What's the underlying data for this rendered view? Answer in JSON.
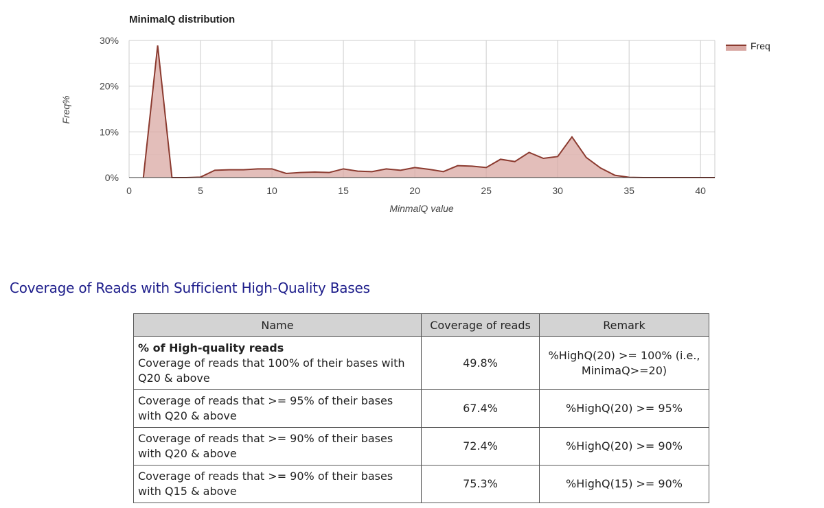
{
  "chart_data": {
    "type": "area",
    "title": "MinimalQ distribution",
    "xlabel": "MinmalQ value",
    "ylabel": "Freq%",
    "xlim": [
      0,
      41
    ],
    "ylim": [
      0,
      30
    ],
    "x_ticks": [
      0,
      5,
      10,
      15,
      20,
      25,
      30,
      35,
      40
    ],
    "y_ticks": [
      "0%",
      "10%",
      "20%",
      "30%"
    ],
    "y_tick_values": [
      0,
      10,
      20,
      30
    ],
    "grid": true,
    "legend_position": "top-right",
    "series_color": "#8b3a2f",
    "series_fill": "#d9a8a3",
    "series": [
      {
        "name": "Freq",
        "x": [
          1,
          2,
          3,
          4,
          5,
          6,
          7,
          8,
          9,
          10,
          11,
          12,
          13,
          14,
          15,
          16,
          17,
          18,
          19,
          20,
          21,
          22,
          23,
          24,
          25,
          26,
          27,
          28,
          29,
          30,
          31,
          32,
          33,
          34,
          35,
          36,
          37,
          38,
          39,
          40,
          41
        ],
        "values": [
          0,
          28.9,
          0,
          0,
          0.1,
          1.6,
          1.7,
          1.7,
          1.9,
          1.9,
          0.9,
          1.1,
          1.2,
          1.1,
          1.9,
          1.4,
          1.3,
          1.9,
          1.6,
          2.2,
          1.8,
          1.3,
          2.6,
          2.5,
          2.2,
          4.0,
          3.5,
          5.5,
          4.2,
          4.6,
          8.9,
          4.4,
          2.1,
          0.5,
          0.05,
          0,
          0,
          0,
          0,
          0,
          0
        ]
      }
    ]
  },
  "section": {
    "heading": "Coverage of Reads with Sufficient High-Quality Bases"
  },
  "table": {
    "headers": [
      "Name",
      "Coverage of reads",
      "Remark"
    ],
    "rows": [
      {
        "title": "% of High-quality reads",
        "desc": "Coverage of reads that 100% of their bases with Q20 & above",
        "coverage": "49.8%",
        "remark": "%HighQ(20) >= 100% (i.e., MinimaQ>=20)"
      },
      {
        "title": "",
        "desc": "Coverage of reads that >= 95% of their bases with Q20 & above",
        "coverage": "67.4%",
        "remark": "%HighQ(20) >= 95%"
      },
      {
        "title": "",
        "desc": "Coverage of reads that >= 90% of their bases with Q20 & above",
        "coverage": "72.4%",
        "remark": "%HighQ(20) >= 90%"
      },
      {
        "title": "",
        "desc": "Coverage of reads that >= 90% of their bases with Q15 & above",
        "coverage": "75.3%",
        "remark": "%HighQ(15) >= 90%"
      }
    ]
  }
}
